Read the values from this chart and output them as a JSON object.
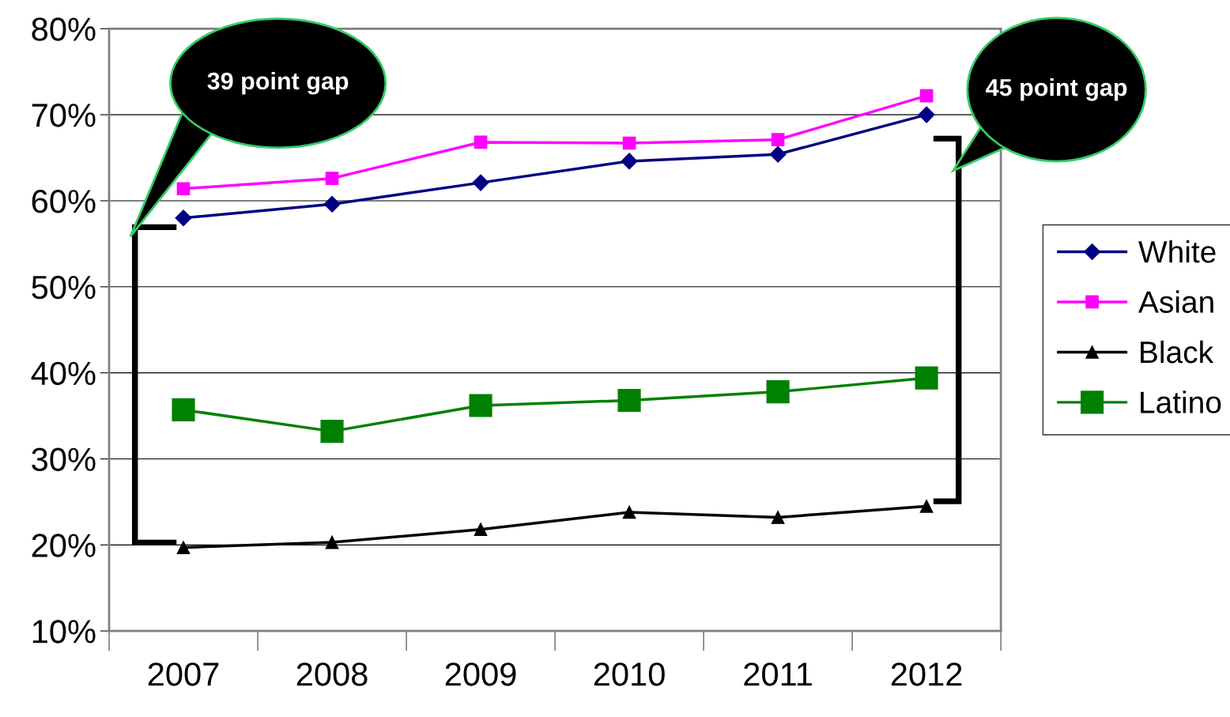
{
  "chart_data": {
    "type": "line",
    "categories": [
      "2007",
      "2008",
      "2009",
      "2010",
      "2011",
      "2012"
    ],
    "series": [
      {
        "name": "White",
        "color": "#000080",
        "marker": "diamond",
        "values": [
          58.0,
          59.6,
          62.1,
          64.6,
          65.4,
          70.0
        ]
      },
      {
        "name": "Asian",
        "color": "#ff00ff",
        "marker": "square",
        "values": [
          61.4,
          62.6,
          66.8,
          66.7,
          67.1,
          72.2
        ]
      },
      {
        "name": "Black",
        "color": "#000000",
        "marker": "triangle",
        "values": [
          19.7,
          20.3,
          21.8,
          23.8,
          23.2,
          24.5
        ]
      },
      {
        "name": "Latino",
        "color": "#008000",
        "marker": "square",
        "values": [
          35.7,
          33.2,
          36.2,
          36.8,
          37.8,
          39.4
        ]
      }
    ],
    "ylim": [
      10,
      80
    ],
    "yticks": [
      {
        "value": 10,
        "label": "10%"
      },
      {
        "value": 20,
        "label": "20%"
      },
      {
        "value": 30,
        "label": "30%"
      },
      {
        "value": 40,
        "label": "40%"
      },
      {
        "value": 50,
        "label": "50%"
      },
      {
        "value": 60,
        "label": "60%"
      },
      {
        "value": 70,
        "label": "70%"
      },
      {
        "value": 80,
        "label": "80%"
      }
    ],
    "grid": "y",
    "legend": "right",
    "line_style": "solid",
    "annotations": [
      "39 point gap",
      "45 point gap"
    ]
  }
}
